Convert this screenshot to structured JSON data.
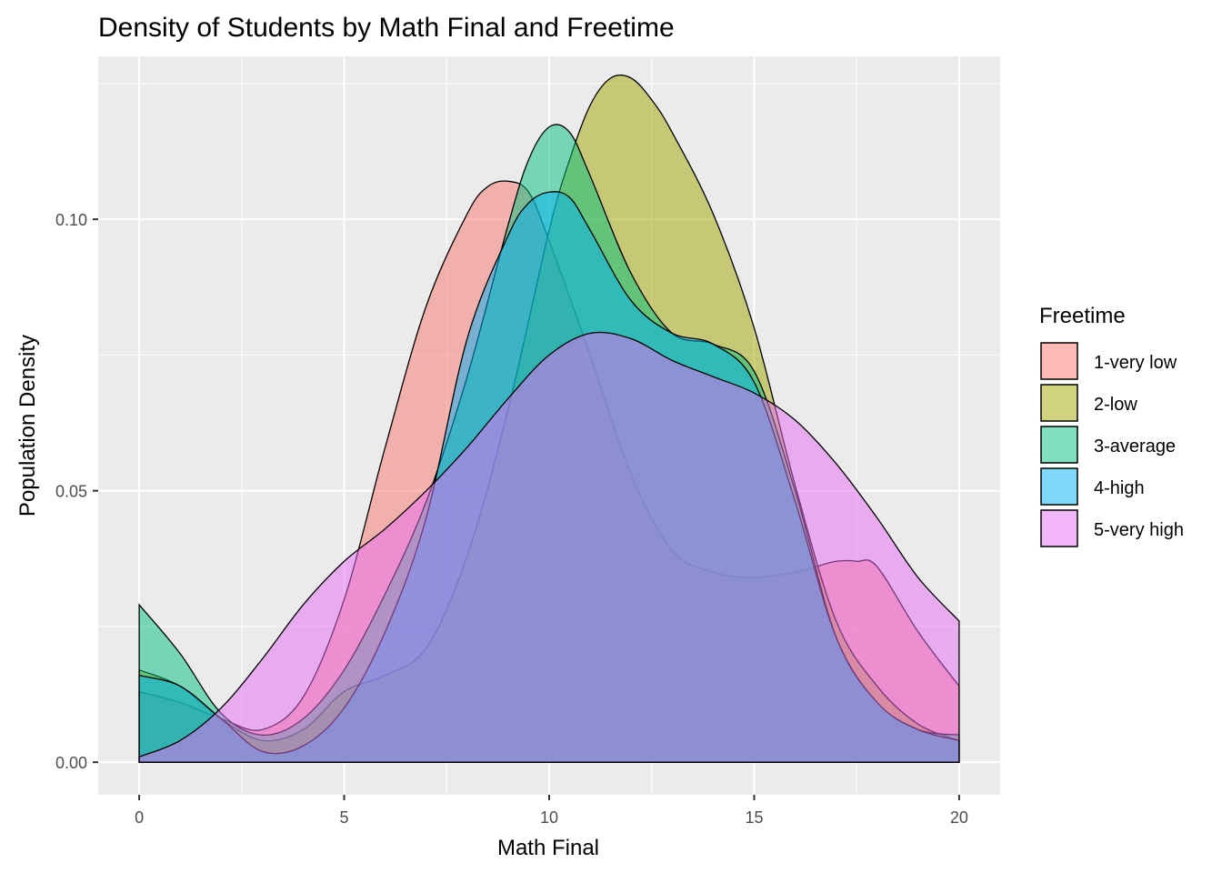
{
  "chart_data": {
    "type": "area",
    "title": "Density of Students by Math Final and Freetime",
    "xlabel": "Math Final",
    "ylabel": "Population Density",
    "xlim": [
      -1,
      21
    ],
    "ylim": [
      -0.006,
      0.13
    ],
    "xticks": [
      0,
      5,
      10,
      15,
      20
    ],
    "xtick_labels": [
      "0",
      "5",
      "10",
      "15",
      "20"
    ],
    "yticks": [
      0.0,
      0.05,
      0.1
    ],
    "ytick_labels": [
      "0.00",
      "0.05",
      "0.10"
    ],
    "grid": true,
    "fill_opacity": 0.5,
    "legend": {
      "title": "Freetime",
      "position": "right"
    },
    "series": [
      {
        "name": "1-very low",
        "color": "#F8766D",
        "x": [
          0,
          1,
          2,
          3,
          4,
          5,
          6,
          7,
          8,
          8.5,
          9,
          9.5,
          10,
          11,
          12,
          13,
          14,
          15,
          16,
          16.5,
          17,
          17.5,
          18,
          19,
          20
        ],
        "y": [
          0.013,
          0.011,
          0.008,
          0.006,
          0.012,
          0.03,
          0.058,
          0.084,
          0.101,
          0.106,
          0.107,
          0.105,
          0.096,
          0.075,
          0.053,
          0.039,
          0.035,
          0.034,
          0.035,
          0.036,
          0.037,
          0.037,
          0.036,
          0.024,
          0.014
        ]
      },
      {
        "name": "2-low",
        "color": "#A3A500",
        "x": [
          0,
          1,
          2,
          3,
          4,
          5,
          6,
          7,
          8,
          9,
          10,
          10.5,
          11,
          11.5,
          12,
          12.5,
          13,
          14,
          15,
          16,
          17,
          18,
          19,
          20
        ],
        "y": [
          0.017,
          0.014,
          0.008,
          0.004,
          0.006,
          0.013,
          0.016,
          0.021,
          0.038,
          0.065,
          0.098,
          0.111,
          0.121,
          0.126,
          0.126,
          0.122,
          0.116,
          0.101,
          0.08,
          0.051,
          0.026,
          0.014,
          0.007,
          0.004
        ]
      },
      {
        "name": "3-average",
        "color": "#00BF7D",
        "x": [
          0,
          1,
          2,
          3,
          4,
          5,
          6,
          7,
          8,
          9,
          9.5,
          10,
          10.5,
          11,
          12,
          13,
          14,
          15,
          16,
          17,
          18,
          19,
          20
        ],
        "y": [
          0.029,
          0.02,
          0.009,
          0.005,
          0.008,
          0.017,
          0.031,
          0.048,
          0.071,
          0.099,
          0.111,
          0.117,
          0.116,
          0.108,
          0.09,
          0.079,
          0.077,
          0.072,
          0.05,
          0.023,
          0.011,
          0.006,
          0.005
        ]
      },
      {
        "name": "4-high",
        "color": "#00B0F6",
        "x": [
          0,
          1,
          2,
          3,
          4,
          5,
          6,
          7,
          8,
          9,
          9.5,
          10,
          10.5,
          11,
          12,
          13,
          14,
          15,
          16,
          17,
          18,
          19,
          20
        ],
        "y": [
          0.016,
          0.014,
          0.008,
          0.002,
          0.003,
          0.01,
          0.024,
          0.045,
          0.078,
          0.097,
          0.103,
          0.105,
          0.104,
          0.098,
          0.085,
          0.079,
          0.077,
          0.07,
          0.048,
          0.023,
          0.011,
          0.006,
          0.004
        ]
      },
      {
        "name": "5-very high",
        "color": "#E76BF3",
        "x": [
          0,
          1,
          2,
          3,
          4,
          5,
          6,
          7,
          8,
          9,
          10,
          11,
          12,
          13,
          14,
          15,
          16,
          17,
          18,
          19,
          20
        ],
        "y": [
          0.001,
          0.004,
          0.01,
          0.019,
          0.029,
          0.037,
          0.043,
          0.05,
          0.058,
          0.067,
          0.075,
          0.079,
          0.078,
          0.074,
          0.071,
          0.068,
          0.063,
          0.055,
          0.045,
          0.034,
          0.026
        ]
      }
    ]
  }
}
